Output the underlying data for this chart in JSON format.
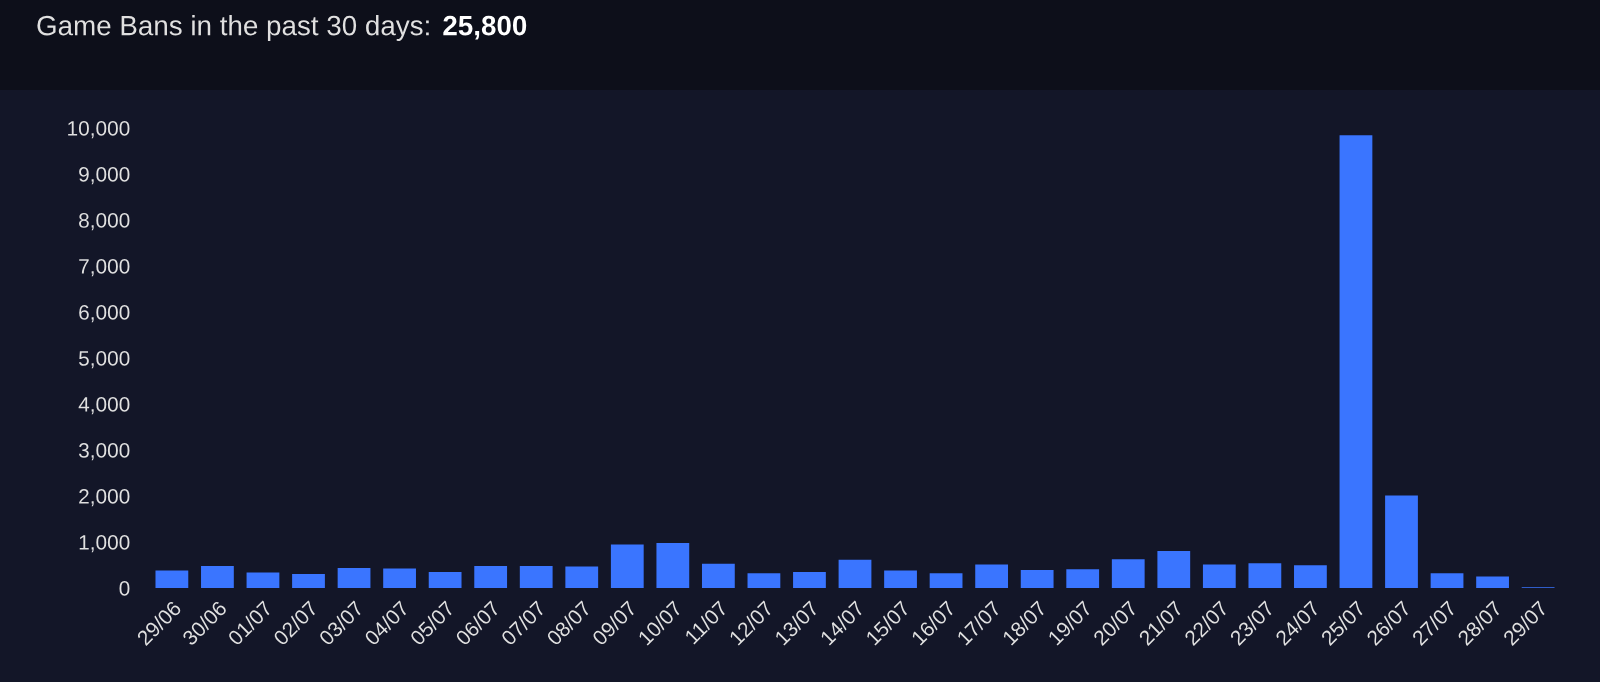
{
  "chart_data": {
    "type": "bar",
    "title": "Game Bans in the past 30 days:",
    "subtitle": "25,800",
    "categories": [
      "29/06",
      "30/06",
      "01/07",
      "02/07",
      "03/07",
      "04/07",
      "05/07",
      "06/07",
      "07/07",
      "08/07",
      "09/07",
      "10/07",
      "11/07",
      "12/07",
      "13/07",
      "14/07",
      "15/07",
      "16/07",
      "17/07",
      "18/07",
      "19/07",
      "20/07",
      "21/07",
      "22/07",
      "23/07",
      "24/07",
      "25/07",
      "26/07",
      "27/07",
      "28/07",
      "29/07"
    ],
    "values": [
      380,
      480,
      335,
      306,
      437,
      423,
      350,
      480,
      480,
      466,
      948,
      977,
      525,
      320,
      350,
      612,
      380,
      320,
      510,
      394,
      408,
      627,
      802,
      510,
      540,
      496,
      9840,
      2012,
      320,
      248,
      15
    ],
    "color": "#3a75ff",
    "ylim": [
      0,
      10000
    ],
    "yticks": [
      0,
      {
        "value": 1000,
        "label": "1,000"
      },
      {
        "value": 2000,
        "label": "2,000"
      },
      {
        "value": 3000,
        "label": "3,000"
      },
      {
        "value": 4000,
        "label": "4,000"
      },
      {
        "value": 5000,
        "label": "5,000"
      },
      {
        "value": 6000,
        "label": "6,000"
      },
      {
        "value": 7000,
        "label": "7,000"
      },
      {
        "value": 8000,
        "label": "8,000"
      },
      {
        "value": 9000,
        "label": "9,000"
      },
      {
        "value": 10000,
        "label": "10,000"
      }
    ],
    "grid": false
  }
}
